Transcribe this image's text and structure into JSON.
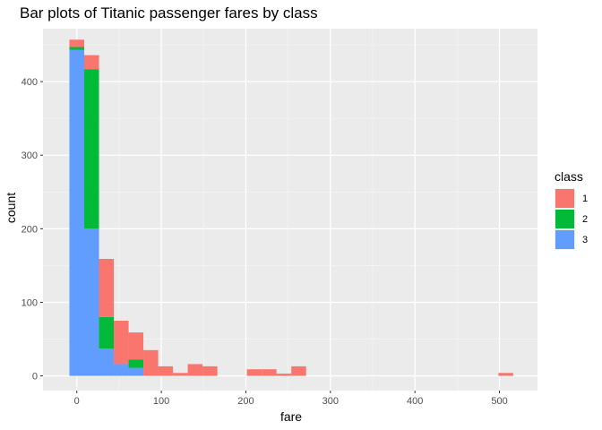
{
  "chart_data": {
    "type": "bar",
    "stacked": true,
    "title": "Bar plots of Titanic passenger fares by class",
    "xlabel": "fare",
    "ylabel": "count",
    "xlim": [
      -40,
      545
    ],
    "ylim": [
      -20,
      472
    ],
    "x_ticks": [
      0,
      100,
      200,
      300,
      400,
      500
    ],
    "y_ticks": [
      0,
      100,
      200,
      300,
      400
    ],
    "grid": true,
    "legend": {
      "title": "class",
      "position": "right"
    },
    "bin_width": 17.5,
    "bin_centers": [
      0,
      17.5,
      35,
      52.5,
      70,
      87.5,
      105,
      122.5,
      140,
      157.5,
      210,
      227.5,
      245,
      262.5,
      507.5
    ],
    "series": [
      {
        "name": "3",
        "color": "#619CFF",
        "values": [
          443,
          200,
          37,
          16,
          11,
          0,
          0,
          0,
          0,
          0,
          0,
          0,
          0,
          0,
          0
        ]
      },
      {
        "name": "2",
        "color": "#00BA38",
        "values": [
          4,
          217,
          43,
          0,
          11,
          0,
          0,
          0,
          0,
          0,
          0,
          0,
          0,
          0,
          0
        ]
      },
      {
        "name": "1",
        "color": "#F8766D",
        "values": [
          10,
          19,
          79,
          59,
          37,
          35,
          13,
          4,
          16,
          13,
          9,
          9,
          3,
          13,
          4
        ]
      }
    ]
  }
}
